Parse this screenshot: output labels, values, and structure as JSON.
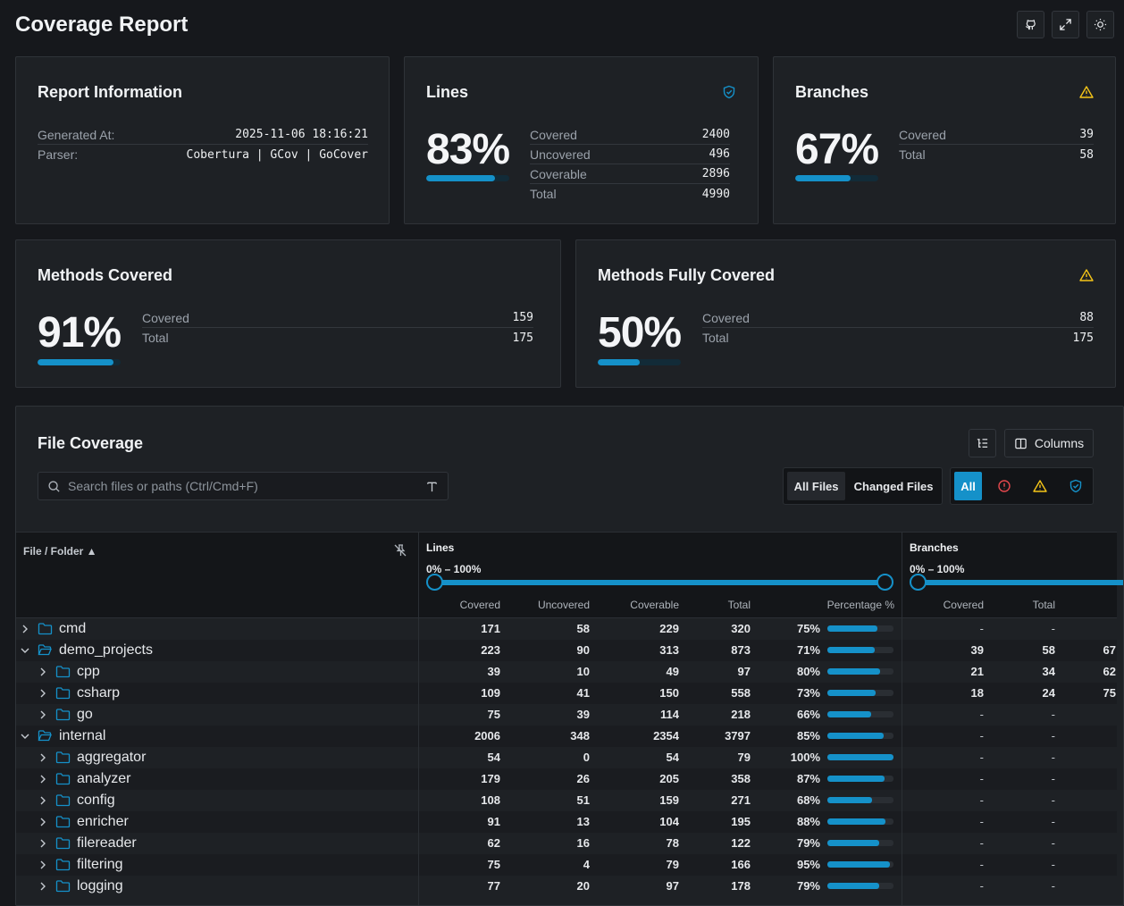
{
  "page": {
    "title": "Coverage Report"
  },
  "toolbar": {
    "icons": [
      "github-icon",
      "fullscreen-icon",
      "theme-toggle-icon"
    ]
  },
  "report_info": {
    "title": "Report Information",
    "generated_label": "Generated At:",
    "generated_value": "2025-11-06 18:16:21",
    "parser_label": "Parser:",
    "parser_value": "Cobertura | GCov | GoCover"
  },
  "lines_card": {
    "title": "Lines",
    "percent": "83%",
    "ratio": 0.83,
    "status": "shield-check-icon",
    "stats": [
      {
        "label": "Covered",
        "value": "2400"
      },
      {
        "label": "Uncovered",
        "value": "496"
      },
      {
        "label": "Coverable",
        "value": "2896"
      },
      {
        "label": "Total",
        "value": "4990"
      }
    ]
  },
  "branches_card": {
    "title": "Branches",
    "percent": "67%",
    "ratio": 0.67,
    "status": "warning-icon",
    "stats": [
      {
        "label": "Covered",
        "value": "39"
      },
      {
        "label": "Total",
        "value": "58"
      }
    ]
  },
  "methods_card": {
    "title": "Methods Covered",
    "percent": "91%",
    "ratio": 0.91,
    "stats": [
      {
        "label": "Covered",
        "value": "159"
      },
      {
        "label": "Total",
        "value": "175"
      }
    ]
  },
  "methods_full_card": {
    "title": "Methods Fully Covered",
    "percent": "50%",
    "ratio": 0.5,
    "status": "warning-icon",
    "stats": [
      {
        "label": "Covered",
        "value": "88"
      },
      {
        "label": "Total",
        "value": "175"
      }
    ]
  },
  "file_coverage": {
    "title": "File Coverage",
    "search_placeholder": "Search files or paths (Ctrl/Cmd+F)",
    "columns_label": "Columns",
    "scope_tabs": [
      {
        "label": "All Files",
        "active": true
      },
      {
        "label": "Changed Files",
        "active": false
      }
    ],
    "filter_all_label": "All",
    "colors": {
      "accent": "#1591c9",
      "danger": "#e5484d",
      "warning": "#f5c518"
    },
    "table": {
      "file_header": "File / Folder ▲",
      "lines_group": "Lines",
      "branches_group": "Branches",
      "range_label": "0% – 100%",
      "lines_columns": [
        "Covered",
        "Uncovered",
        "Coverable",
        "Total",
        "Percentage %"
      ],
      "branches_columns": [
        "Covered",
        "Total"
      ],
      "rows": [
        {
          "name": "cmd",
          "depth": 0,
          "expanded": false,
          "covered": "171",
          "uncovered": "58",
          "coverable": "229",
          "total": "320",
          "pct": "75%",
          "ratio": 0.75,
          "b_covered": "-",
          "b_total": "-",
          "b_pct": ""
        },
        {
          "name": "demo_projects",
          "depth": 0,
          "expanded": true,
          "covered": "223",
          "uncovered": "90",
          "coverable": "313",
          "total": "873",
          "pct": "71%",
          "ratio": 0.71,
          "b_covered": "39",
          "b_total": "58",
          "b_pct": "67"
        },
        {
          "name": "cpp",
          "depth": 1,
          "expanded": false,
          "covered": "39",
          "uncovered": "10",
          "coverable": "49",
          "total": "97",
          "pct": "80%",
          "ratio": 0.8,
          "b_covered": "21",
          "b_total": "34",
          "b_pct": "62"
        },
        {
          "name": "csharp",
          "depth": 1,
          "expanded": false,
          "covered": "109",
          "uncovered": "41",
          "coverable": "150",
          "total": "558",
          "pct": "73%",
          "ratio": 0.73,
          "b_covered": "18",
          "b_total": "24",
          "b_pct": "75"
        },
        {
          "name": "go",
          "depth": 1,
          "expanded": false,
          "covered": "75",
          "uncovered": "39",
          "coverable": "114",
          "total": "218",
          "pct": "66%",
          "ratio": 0.66,
          "b_covered": "-",
          "b_total": "-",
          "b_pct": ""
        },
        {
          "name": "internal",
          "depth": 0,
          "expanded": true,
          "covered": "2006",
          "uncovered": "348",
          "coverable": "2354",
          "total": "3797",
          "pct": "85%",
          "ratio": 0.85,
          "b_covered": "-",
          "b_total": "-",
          "b_pct": ""
        },
        {
          "name": "aggregator",
          "depth": 1,
          "expanded": false,
          "covered": "54",
          "uncovered": "0",
          "coverable": "54",
          "total": "79",
          "pct": "100%",
          "ratio": 1.0,
          "b_covered": "-",
          "b_total": "-",
          "b_pct": ""
        },
        {
          "name": "analyzer",
          "depth": 1,
          "expanded": false,
          "covered": "179",
          "uncovered": "26",
          "coverable": "205",
          "total": "358",
          "pct": "87%",
          "ratio": 0.87,
          "b_covered": "-",
          "b_total": "-",
          "b_pct": ""
        },
        {
          "name": "config",
          "depth": 1,
          "expanded": false,
          "covered": "108",
          "uncovered": "51",
          "coverable": "159",
          "total": "271",
          "pct": "68%",
          "ratio": 0.68,
          "b_covered": "-",
          "b_total": "-",
          "b_pct": ""
        },
        {
          "name": "enricher",
          "depth": 1,
          "expanded": false,
          "covered": "91",
          "uncovered": "13",
          "coverable": "104",
          "total": "195",
          "pct": "88%",
          "ratio": 0.88,
          "b_covered": "-",
          "b_total": "-",
          "b_pct": ""
        },
        {
          "name": "filereader",
          "depth": 1,
          "expanded": false,
          "covered": "62",
          "uncovered": "16",
          "coverable": "78",
          "total": "122",
          "pct": "79%",
          "ratio": 0.79,
          "b_covered": "-",
          "b_total": "-",
          "b_pct": ""
        },
        {
          "name": "filtering",
          "depth": 1,
          "expanded": false,
          "covered": "75",
          "uncovered": "4",
          "coverable": "79",
          "total": "166",
          "pct": "95%",
          "ratio": 0.95,
          "b_covered": "-",
          "b_total": "-",
          "b_pct": ""
        },
        {
          "name": "logging",
          "depth": 1,
          "expanded": false,
          "covered": "77",
          "uncovered": "20",
          "coverable": "97",
          "total": "178",
          "pct": "79%",
          "ratio": 0.79,
          "b_covered": "-",
          "b_total": "-",
          "b_pct": ""
        }
      ]
    }
  }
}
